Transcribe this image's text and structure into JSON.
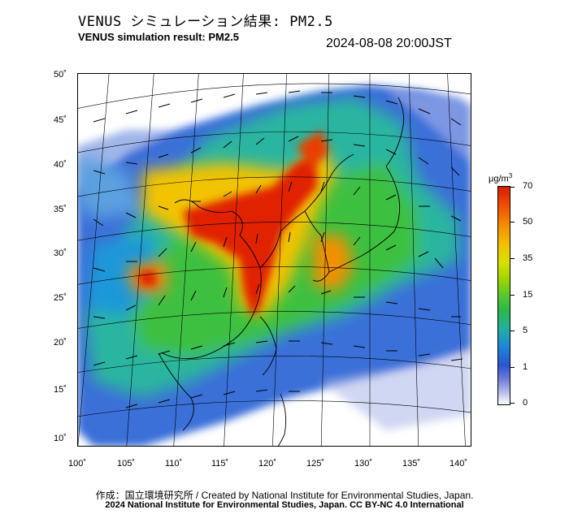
{
  "header": {
    "title_jp": "VENUS シミュレーション結果: PM2.5",
    "title_en": "VENUS simulation result: PM2.5",
    "timestamp": "2024-08-08 20:00JST"
  },
  "map": {
    "lat_labels": [
      "50˚",
      "45˚",
      "40˚",
      "35˚",
      "30˚",
      "25˚",
      "20˚",
      "15˚",
      "10˚"
    ],
    "lon_labels": [
      "100˚",
      "105˚",
      "110˚",
      "115˚",
      "120˚",
      "125˚",
      "130˚",
      "135˚",
      "140˚"
    ],
    "overlay": "PM2.5 concentration with wind vectors"
  },
  "colorbar": {
    "unit": "μg/m",
    "unit_sup": "3",
    "ticks": [
      "70",
      "50",
      "35",
      "15",
      "5",
      "1",
      "0"
    ],
    "colors": [
      "#d81c00",
      "#f29000",
      "#d8e000",
      "#55c830",
      "#22b0a0",
      "#2a55d0",
      "#ffffff"
    ]
  },
  "footer": {
    "line1": "作成：国立環境研究所 / Created by National Institute for Environmental Studies, Japan.",
    "line2": "2024 National Institute for Environmental Studies, Japan. CC BY-NC 4.0 International"
  }
}
